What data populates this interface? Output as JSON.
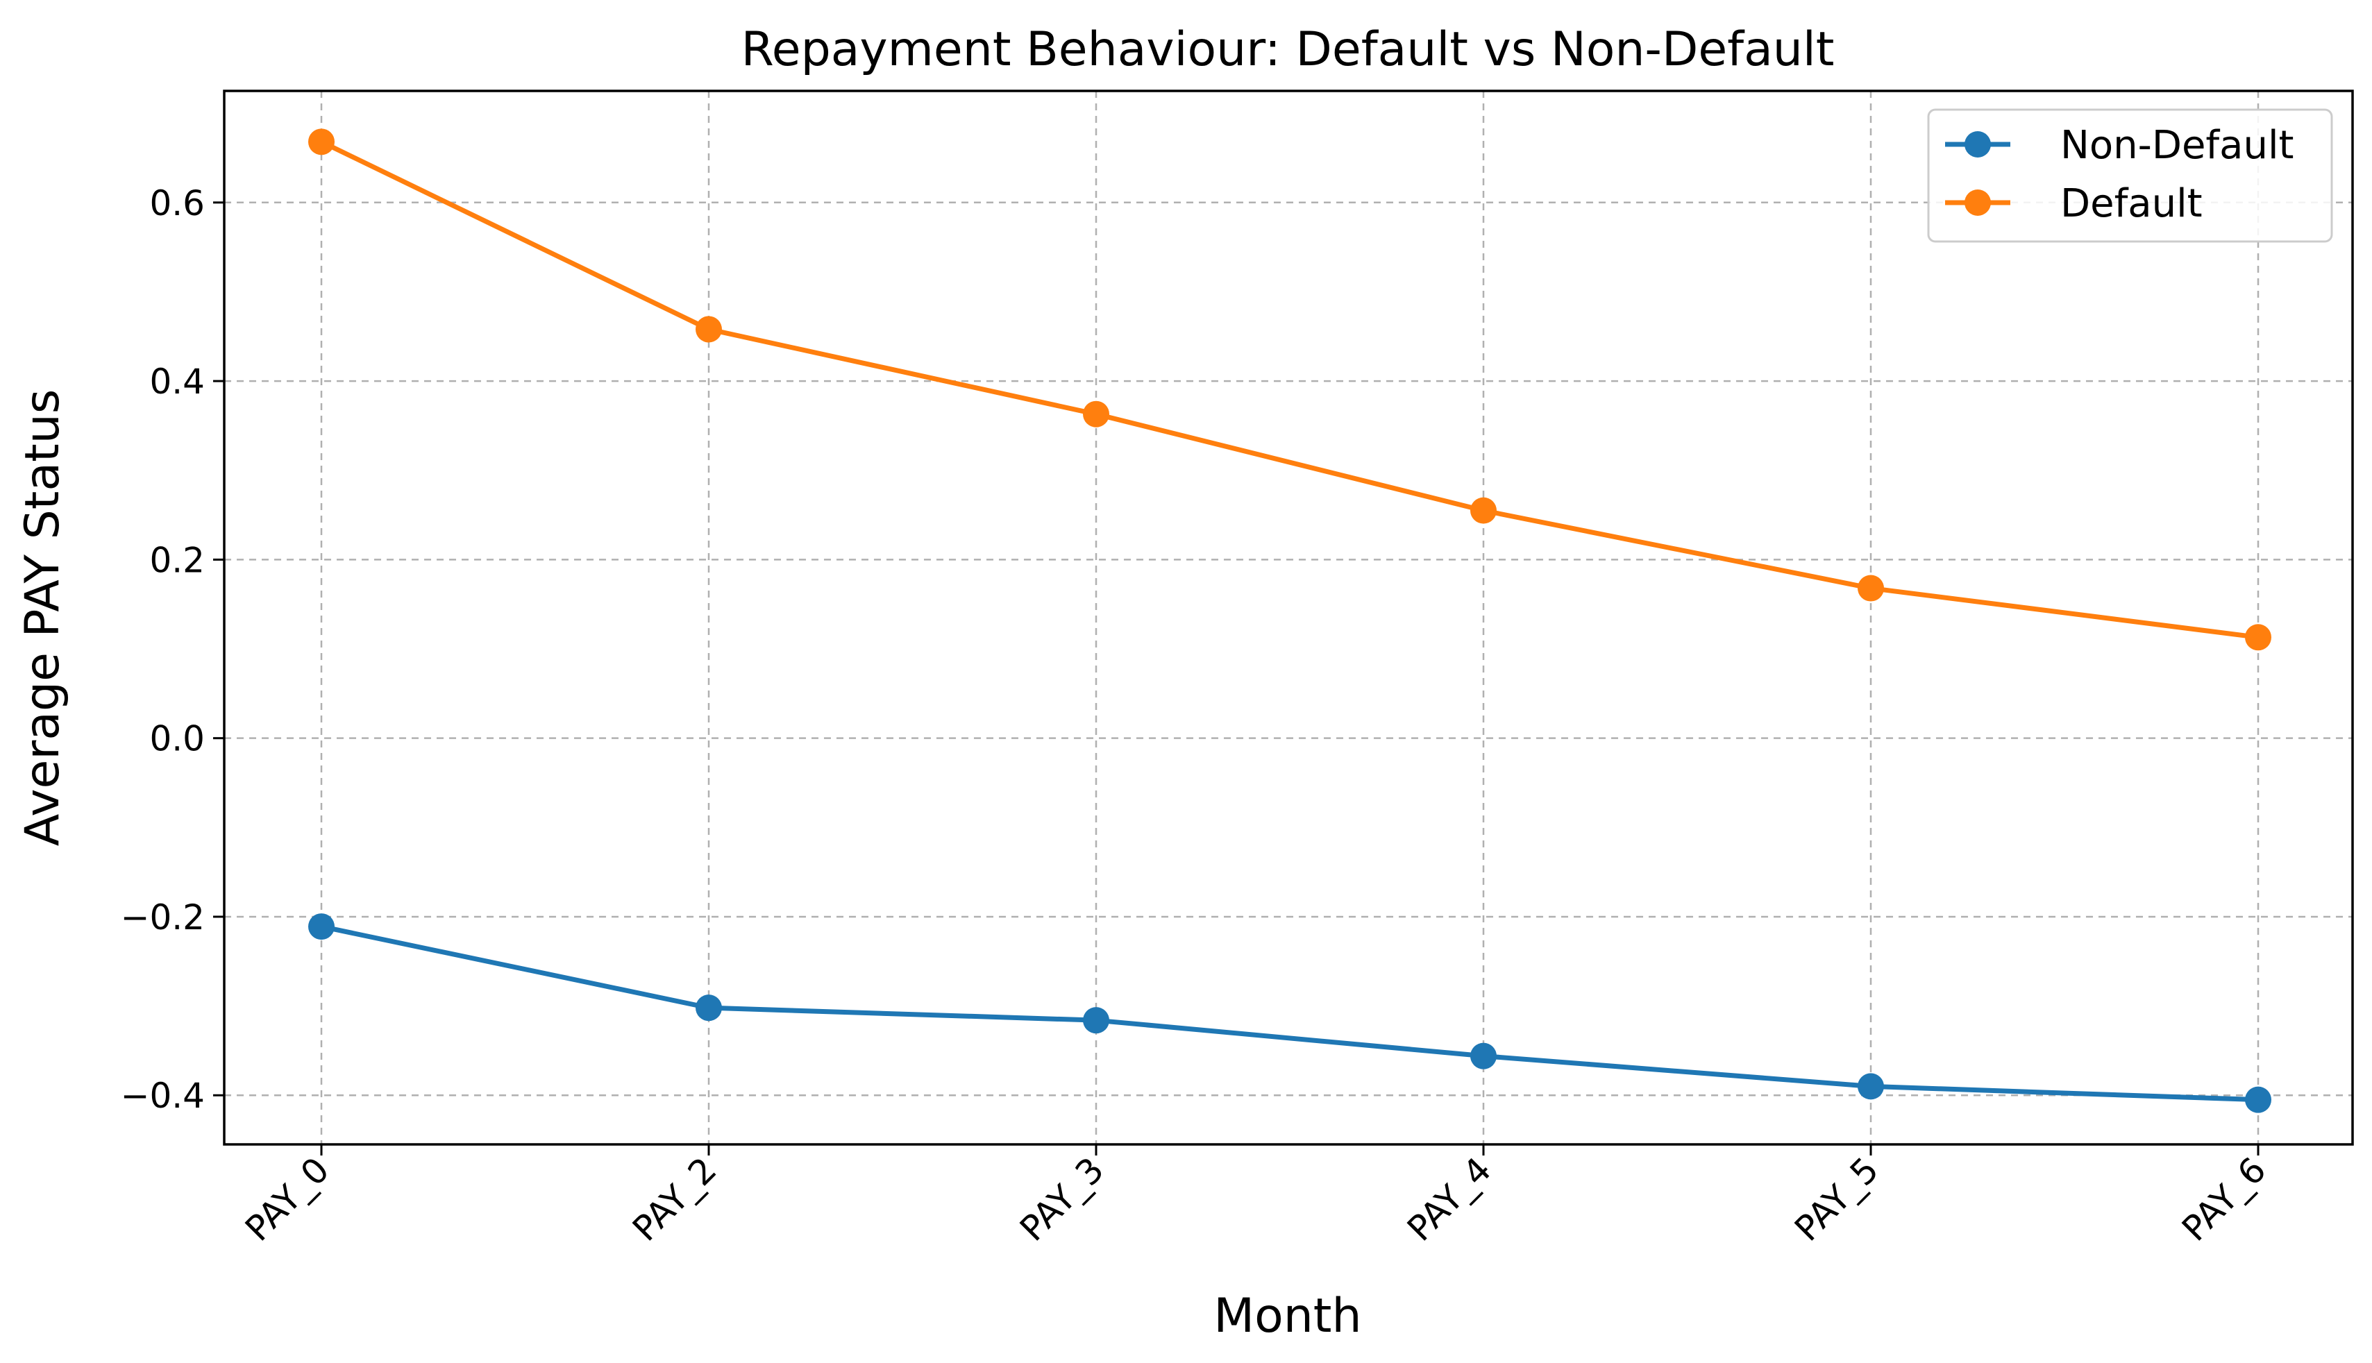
{
  "chart_data": {
    "type": "line",
    "title": "Repayment Behaviour: Default vs Non-Default",
    "xlabel": "Month",
    "ylabel": "Average PAY Status",
    "categories": [
      "PAY_0",
      "PAY_2",
      "PAY_3",
      "PAY_4",
      "PAY_5",
      "PAY_6"
    ],
    "ylim": [
      -0.455,
      0.725
    ],
    "yticks": [
      -0.4,
      -0.2,
      0.0,
      0.2,
      0.4,
      0.6
    ],
    "ytick_labels": [
      "−0.4",
      "−0.2",
      "0.0",
      "0.2",
      "0.4",
      "0.6"
    ],
    "grid": true,
    "legend_position": "top-right",
    "series": [
      {
        "name": "Non-Default",
        "color": "#1f77b4",
        "marker": "circle",
        "values": [
          -0.211,
          -0.302,
          -0.316,
          -0.356,
          -0.39,
          -0.405
        ]
      },
      {
        "name": "Default",
        "color": "#ff7f0e",
        "marker": "circle",
        "values": [
          0.668,
          0.458,
          0.363,
          0.255,
          0.168,
          0.113
        ]
      }
    ]
  }
}
